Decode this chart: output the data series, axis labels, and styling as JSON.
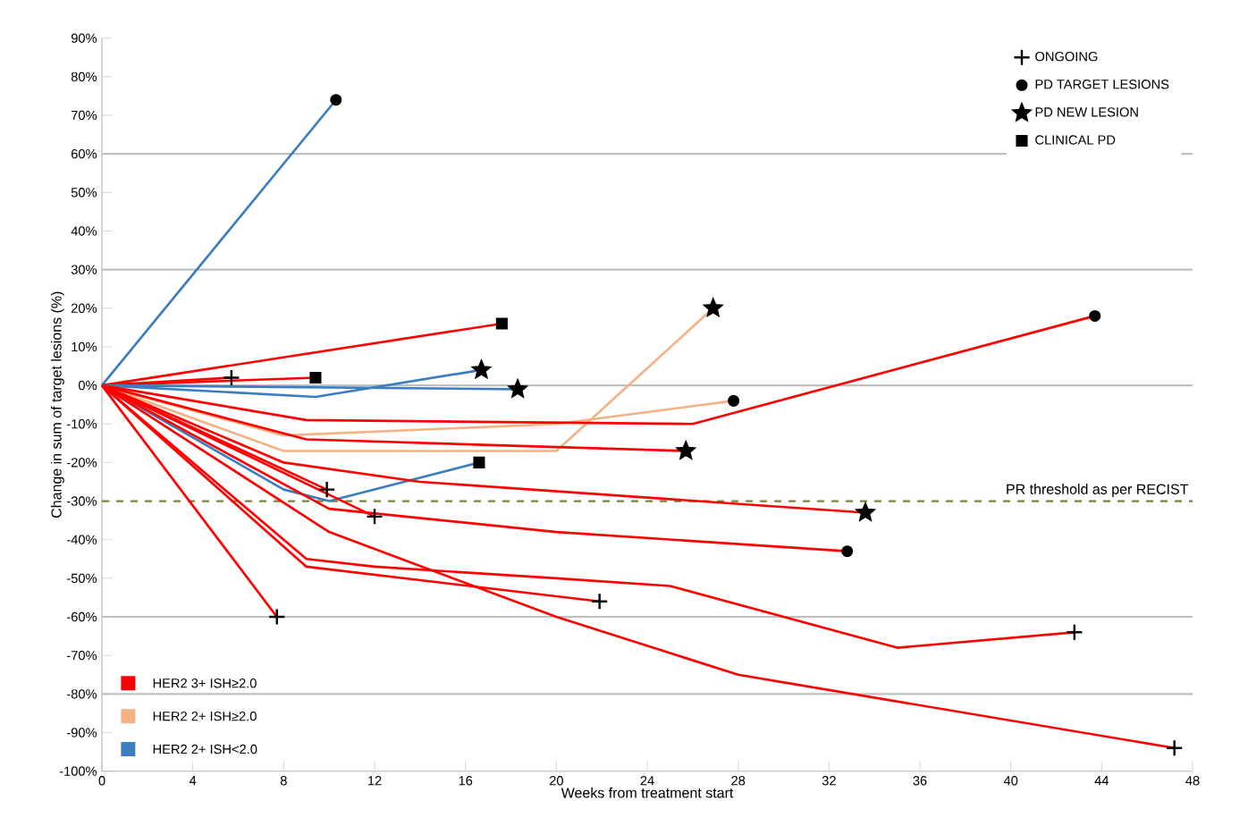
{
  "chart_data": {
    "type": "line",
    "xlabel": "Weeks from treatment start",
    "ylabel": "Change in sum of target lesions (%)",
    "xlim": [
      0,
      48
    ],
    "xticks": [
      0,
      4,
      8,
      12,
      16,
      20,
      24,
      28,
      32,
      36,
      40,
      44,
      48
    ],
    "ylim": [
      -100,
      90
    ],
    "yticks": [
      {
        "value": 90,
        "label": "90%"
      },
      {
        "value": 80,
        "label": "80%"
      },
      {
        "value": 70,
        "label": "70%"
      },
      {
        "value": 60,
        "label": "60%"
      },
      {
        "value": 50,
        "label": "50%"
      },
      {
        "value": 40,
        "label": "40%"
      },
      {
        "value": 30,
        "label": "30%"
      },
      {
        "value": 20,
        "label": "20%"
      },
      {
        "value": 10,
        "label": "10%"
      },
      {
        "value": 0,
        "label": "0%"
      },
      {
        "value": -10,
        "label": "-10%"
      },
      {
        "value": -20,
        "label": "-20%"
      },
      {
        "value": -30,
        "label": "-30%"
      },
      {
        "value": -40,
        "label": "-40%"
      },
      {
        "value": -50,
        "label": "-50%"
      },
      {
        "value": -60,
        "label": "-60%"
      },
      {
        "value": -70,
        "label": "-70%"
      },
      {
        "value": -80,
        "label": "-80%"
      },
      {
        "value": -90,
        "label": "-90%"
      },
      {
        "value": -100,
        "label": "-100%"
      }
    ],
    "legend": "top right",
    "ref_lines": [
      {
        "axis": "y",
        "value": 60,
        "color": "#bfbfbf"
      },
      {
        "axis": "y",
        "value": 30,
        "color": "#bfbfbf"
      },
      {
        "axis": "y",
        "value": 0,
        "color": "#bfbfbf"
      },
      {
        "axis": "y",
        "value": -30,
        "label": "PR threshold as per RECIST",
        "color": "#7f7f3f",
        "line_style": "dashed"
      },
      {
        "axis": "y",
        "value": -60,
        "color": "#bfbfbf"
      },
      {
        "axis": "y",
        "value": -80,
        "color": "#bfbfbf"
      }
    ],
    "series": [
      {
        "type": "line",
        "name": "HER2 3+ ISH≥2.0",
        "color": "#ff0000",
        "x": [
          0,
          17.6
        ],
        "values": [
          0,
          16
        ]
      },
      {
        "type": "line",
        "name": "HER2 2+ ISH≥2.0",
        "color": "#f4b183",
        "x": [
          0,
          8,
          20,
          27.8
        ],
        "values": [
          0,
          -13,
          -10,
          -4
        ]
      },
      {
        "type": "line",
        "name": "HER2 2+ ISH<2.0",
        "color": "#3a7ebf",
        "x": [
          0,
          10.3
        ],
        "values": [
          0,
          74
        ]
      },
      {
        "type": "line",
        "color": "#ff0000",
        "x": [
          0,
          5.7
        ],
        "values": [
          0,
          2
        ]
      },
      {
        "type": "line",
        "color": "#ff0000",
        "x": [
          0,
          9.4
        ],
        "values": [
          0,
          2
        ]
      },
      {
        "type": "line",
        "color": "#3a7ebf",
        "x": [
          0,
          9.4,
          16.7
        ],
        "values": [
          0,
          -3,
          4
        ]
      },
      {
        "type": "line",
        "color": "#3a7ebf",
        "x": [
          0,
          18.3
        ],
        "values": [
          0,
          -1
        ]
      },
      {
        "type": "line",
        "color": "#f4b183",
        "x": [
          0,
          8,
          20,
          26.9
        ],
        "values": [
          0,
          -17,
          -17,
          20
        ]
      },
      {
        "type": "line",
        "color": "#ff0000",
        "x": [
          0,
          9,
          26,
          43.7
        ],
        "values": [
          0,
          -9,
          -10,
          18
        ]
      },
      {
        "type": "line",
        "color": "#ff0000",
        "x": [
          0,
          9,
          25.7
        ],
        "values": [
          0,
          -14,
          -17
        ]
      },
      {
        "type": "line",
        "color": "#3a7ebf",
        "x": [
          0,
          8,
          10,
          16.6
        ],
        "values": [
          0,
          -27,
          -30,
          -20
        ]
      },
      {
        "type": "line",
        "color": "#ff0000",
        "x": [
          0,
          8,
          14,
          33.6
        ],
        "values": [
          0,
          -20,
          -25,
          -33
        ]
      },
      {
        "type": "line",
        "color": "#ff0000",
        "x": [
          0,
          9.9
        ],
        "values": [
          0,
          -27
        ]
      },
      {
        "type": "line",
        "color": "#ff0000",
        "x": [
          0,
          12
        ],
        "values": [
          0,
          -34
        ]
      },
      {
        "type": "line",
        "color": "#ff0000",
        "x": [
          0,
          10,
          20,
          32.8
        ],
        "values": [
          0,
          -32,
          -38,
          -43
        ]
      },
      {
        "type": "line",
        "color": "#ff0000",
        "x": [
          0,
          9,
          21.9
        ],
        "values": [
          0,
          -47,
          -56
        ]
      },
      {
        "type": "line",
        "color": "#ff0000",
        "x": [
          0,
          7.7
        ],
        "values": [
          0,
          -60
        ]
      },
      {
        "type": "line",
        "color": "#ff0000",
        "x": [
          0,
          9,
          12,
          20,
          25,
          35,
          42.8
        ],
        "values": [
          0,
          -45,
          -47,
          -50,
          -52,
          -68,
          -64
        ]
      },
      {
        "type": "line",
        "color": "#ff0000",
        "x": [
          0,
          10,
          20,
          28,
          47.2
        ],
        "values": [
          0,
          -38,
          -60,
          -75,
          -94
        ]
      },
      {
        "type": "scatter",
        "name": "ONGOING",
        "color": "#000000",
        "marker": "cross",
        "x": [
          5.7,
          9.9,
          12,
          21.9,
          7.7,
          42.8,
          47.2
        ],
        "values": [
          2,
          -27,
          -34,
          -56,
          -60,
          -64,
          -94
        ]
      },
      {
        "type": "scatter",
        "name": "PD TARGET LESIONS",
        "color": "#000000",
        "marker": "circle",
        "x": [
          10.3,
          27.8,
          43.7,
          32.8
        ],
        "values": [
          74,
          -4,
          18,
          -43
        ]
      },
      {
        "type": "scatter",
        "name": "PD NEW LESION",
        "color": "#000000",
        "marker": "star",
        "x": [
          16.7,
          18.3,
          26.9,
          25.7,
          33.6
        ],
        "values": [
          4,
          -1,
          20,
          -17,
          -33
        ]
      },
      {
        "type": "scatter",
        "name": "CLINICAL PD",
        "color": "#000000",
        "marker": "square",
        "x": [
          17.6,
          9.4,
          16.6
        ],
        "values": [
          16,
          2,
          -20
        ]
      }
    ]
  }
}
